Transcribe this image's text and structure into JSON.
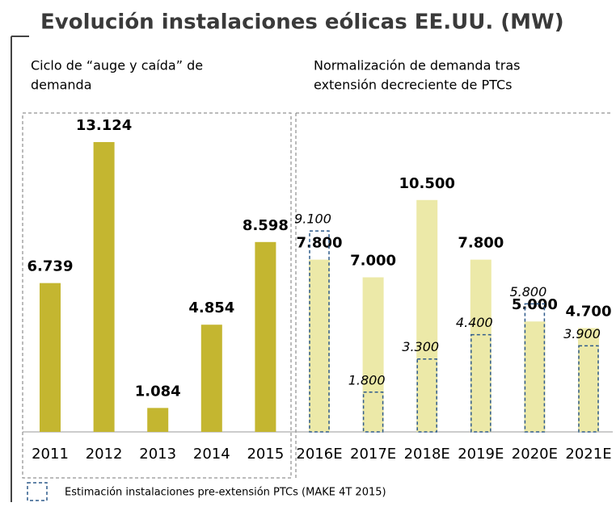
{
  "chart_data": {
    "type": "bar",
    "title": "Evolución instalaciones eólicas EE.UU. (MW)",
    "annotations": [
      "Ciclo de “auge y caída” de",
      "demanda",
      "Normalización de demanda tras",
      "extensión decreciente de PTCs"
    ],
    "categories": [
      "2011",
      "2012",
      "2013",
      "2014",
      "2015",
      "2016E",
      "2017E",
      "2018E",
      "2019E",
      "2020E",
      "2021E"
    ],
    "series": [
      {
        "color": "#c4b630",
        "values": [
          6739,
          13124,
          1084,
          4854,
          8598,
          null,
          null,
          null,
          null,
          null,
          null
        ],
        "value_labels": [
          "6.739",
          "13.124",
          "1.084",
          "4.854",
          "8.598",
          null,
          null,
          null,
          null,
          null,
          null
        ]
      },
      {
        "color": "#ece9a8",
        "values": [
          null,
          null,
          null,
          null,
          null,
          7800,
          7000,
          10500,
          7800,
          5000,
          4700
        ],
        "value_labels": [
          null,
          null,
          null,
          null,
          null,
          "7.800",
          "7.000",
          "10.500",
          "7.800",
          "5.000",
          "4.700"
        ]
      },
      {
        "name": "Estimación instalaciones pre-extensión PTCs (MAKE 4T 2015)",
        "color": "#2f5b8c",
        "dashed": true,
        "values": [
          null,
          null,
          null,
          null,
          null,
          9100,
          1800,
          3300,
          4400,
          5800,
          3900
        ],
        "value_labels": [
          null,
          null,
          null,
          null,
          null,
          "9.100",
          "1.800",
          "3.300",
          "4.400",
          "5.800",
          "3.900"
        ]
      }
    ]
  }
}
